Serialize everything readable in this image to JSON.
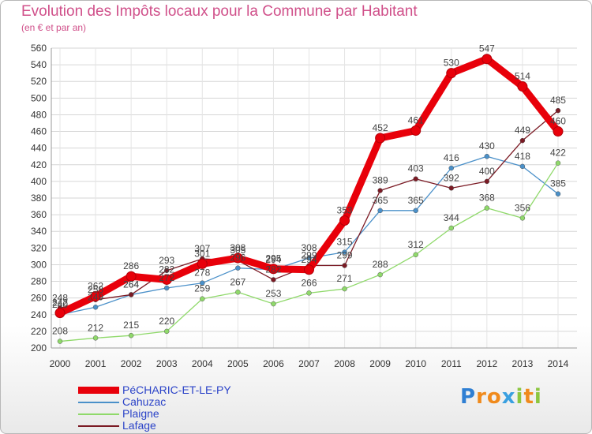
{
  "chart_data": {
    "type": "line",
    "title": "Evolution des Impôts locaux pour la Commune par Habitant",
    "subtitle": "(en € et par an)",
    "xlabel": "",
    "ylabel": "",
    "categories": [
      "2000",
      "2001",
      "2002",
      "2003",
      "2004",
      "2005",
      "2006",
      "2007",
      "2008",
      "2009",
      "2010",
      "2011",
      "2012",
      "2013",
      "2014"
    ],
    "ylim": [
      200,
      560
    ],
    "yticks": [
      200,
      220,
      240,
      260,
      280,
      300,
      320,
      340,
      360,
      380,
      400,
      420,
      440,
      460,
      480,
      500,
      520,
      540,
      560
    ],
    "grid": true,
    "legend_position": "bottom-left",
    "series": [
      {
        "name": "PéCHARIC-ET-LE-PY",
        "color": "#e8000a",
        "values": [
          242,
          262,
          286,
          282,
          301,
          308,
          295,
          294,
          353,
          452,
          461,
          530,
          547,
          514,
          460
        ]
      },
      {
        "name": "Cahuzac",
        "color": "#4a90c9",
        "values": [
          240,
          249,
          264,
          272,
          278,
          296,
          294,
          308,
          315,
          365,
          365,
          416,
          430,
          418,
          385
        ]
      },
      {
        "name": "Plaigne",
        "color": "#8fd96a",
        "values": [
          208,
          212,
          215,
          220,
          259,
          267,
          253,
          266,
          271,
          288,
          312,
          344,
          368,
          356,
          422
        ]
      },
      {
        "name": "Lafage",
        "color": "#7b1a24",
        "values": [
          248,
          258,
          264,
          293,
          307,
          305,
          282,
          299,
          299,
          389,
          403,
          392,
          400,
          449,
          485
        ]
      }
    ]
  },
  "legend": {
    "items": [
      {
        "label": "PéCHARIC-ET-LE-PY",
        "color": "#e8000a"
      },
      {
        "label": "Cahuzac",
        "color": "#4a90c9"
      },
      {
        "label": "Plaigne",
        "color": "#8fd96a"
      },
      {
        "label": "Lafage",
        "color": "#7b1a24"
      }
    ]
  },
  "logo": {
    "letters": [
      {
        "char": "P",
        "color": "#2f7fd3"
      },
      {
        "char": "r",
        "color": "#f08a1c"
      },
      {
        "char": "o",
        "color": "#f08a1c"
      },
      {
        "char": "x",
        "color": "#3aa0e0"
      },
      {
        "char": "i",
        "color": "#8cc63f"
      },
      {
        "char": "t",
        "color": "#f08a1c"
      },
      {
        "char": "i",
        "color": "#8cc63f"
      }
    ]
  }
}
